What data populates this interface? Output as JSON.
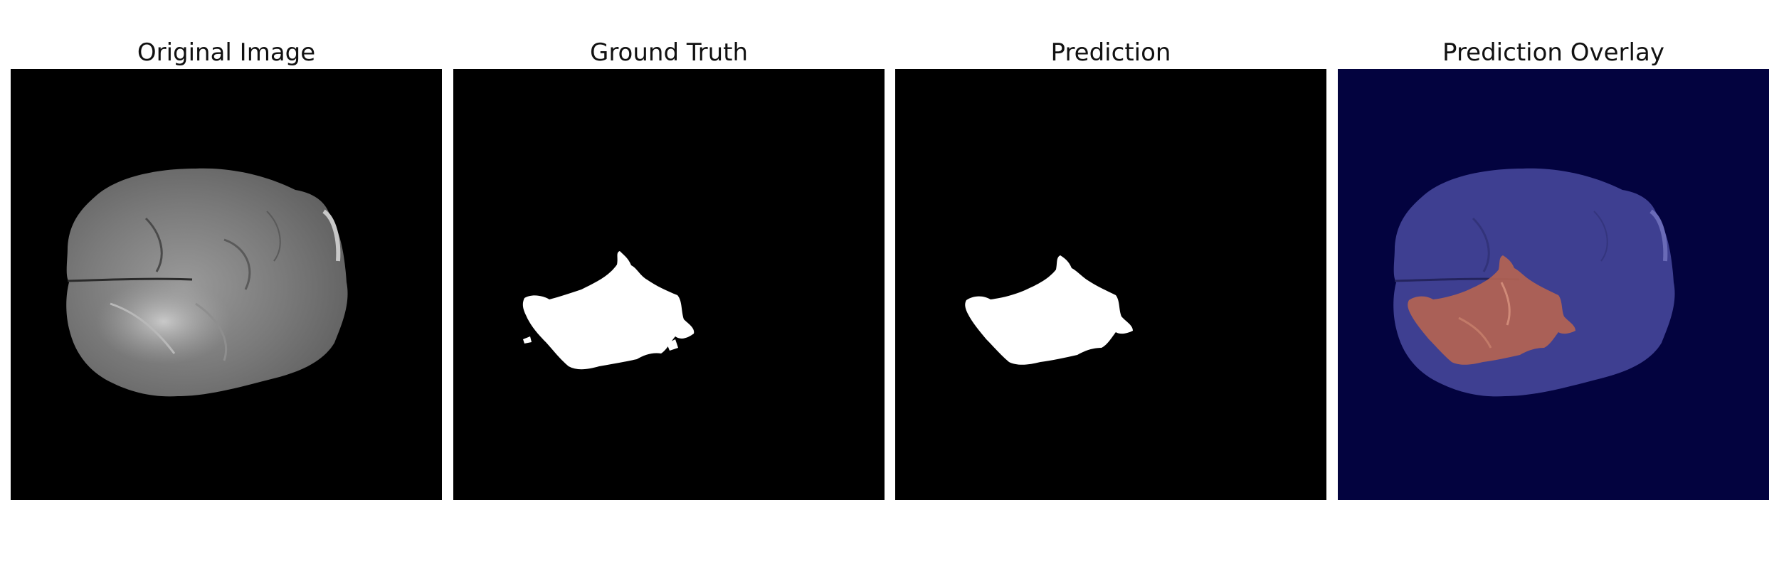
{
  "panels": [
    {
      "title": "Original Image"
    },
    {
      "title": "Ground Truth"
    },
    {
      "title": "Prediction"
    },
    {
      "title": "Prediction Overlay"
    }
  ],
  "colors": {
    "background": "#000000",
    "mask": "#ffffff",
    "overlay_background": "#03033f",
    "overlay_tissue": "#3e3f91",
    "overlay_prediction": "#b36352"
  }
}
